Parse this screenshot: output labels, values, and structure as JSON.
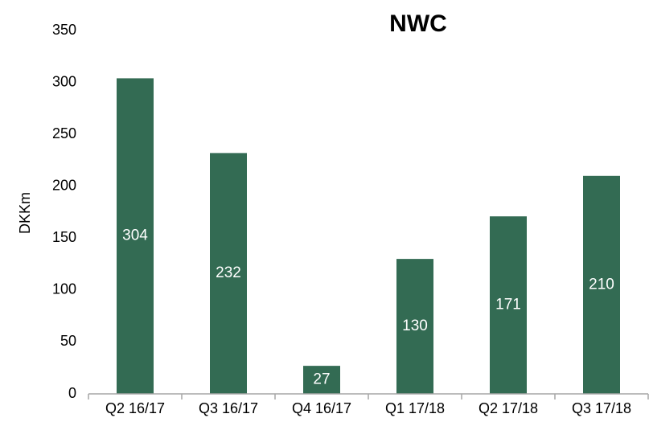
{
  "chart_data": {
    "type": "bar",
    "title": "NWC",
    "y_label": "DKKm",
    "categories": [
      "Q2 16/17",
      "Q3 16/17",
      "Q4 16/17",
      "Q1 17/18",
      "Q2 17/18",
      "Q3 17/18"
    ],
    "values": [
      304,
      232,
      27,
      130,
      171,
      210
    ],
    "color": "#336b53",
    "ylim": [
      0,
      350
    ],
    "yticks": [
      0,
      50,
      100,
      150,
      200,
      250,
      300,
      350
    ],
    "grid": false
  }
}
